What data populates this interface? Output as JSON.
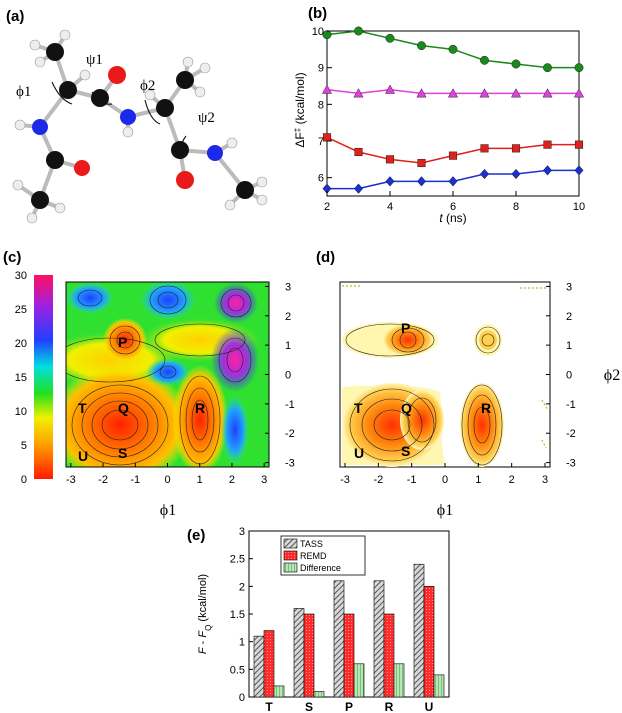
{
  "panel_labels": {
    "a": "(a)",
    "b": "(b)",
    "c": "(c)",
    "d": "(d)",
    "e": "(e)"
  },
  "molecule": {
    "labels": [
      "ψ1",
      "ϕ1",
      "ϕ2",
      "ψ2"
    ]
  },
  "chart_data": [
    {
      "id": "b",
      "type": "line",
      "xlabel_italic": "t",
      "xlabel_unit": "(ns)",
      "ylabel": "ΔF‡ (kcal/mol)",
      "x": [
        2,
        3,
        4,
        5,
        6,
        7,
        8,
        9,
        10
      ],
      "xlim": [
        2,
        10
      ],
      "ylim": [
        5.5,
        10
      ],
      "xticks": [
        "2",
        "4",
        "6",
        "8",
        "10"
      ],
      "yticks": [
        "6",
        "7",
        "8",
        "9",
        "10"
      ],
      "series": [
        {
          "color": "#1a8a1a",
          "marker": "circle",
          "values": [
            9.9,
            10.0,
            9.8,
            9.6,
            9.5,
            9.2,
            9.1,
            9.0,
            9.0
          ]
        },
        {
          "color": "#e040e0",
          "marker": "triangle",
          "values": [
            8.4,
            8.3,
            8.4,
            8.3,
            8.3,
            8.3,
            8.3,
            8.3,
            8.3
          ]
        },
        {
          "color": "#e0201a",
          "marker": "square",
          "values": [
            7.1,
            6.7,
            6.5,
            6.4,
            6.6,
            6.8,
            6.8,
            6.9,
            6.9
          ]
        },
        {
          "color": "#1a30d0",
          "marker": "diamond",
          "values": [
            5.7,
            5.7,
            5.9,
            5.9,
            5.9,
            6.1,
            6.1,
            6.2,
            6.2
          ]
        }
      ]
    },
    {
      "id": "c",
      "type": "heatmap",
      "xlabel": "ϕ1",
      "colorbar_ticks": [
        "30",
        "25",
        "20",
        "15",
        "10",
        "5",
        "0"
      ],
      "colorbar_range": [
        0,
        30
      ],
      "xticks": [
        "-3",
        "-2",
        "-1",
        "0",
        "1",
        "2",
        "3"
      ],
      "yticks": [
        "3",
        "2",
        "1",
        "0",
        "-1",
        "-2",
        "-3"
      ],
      "region_labels": [
        "P",
        "T",
        "Q",
        "R",
        "U",
        "S"
      ]
    },
    {
      "id": "d",
      "type": "heatmap",
      "xlabel": "ϕ1",
      "ylabel": "ϕ2",
      "xticks": [
        "-3",
        "-2",
        "-1",
        "0",
        "1",
        "2",
        "3"
      ],
      "yticks": [
        "3",
        "2",
        "1",
        "0",
        "-1",
        "-2",
        "-3"
      ],
      "region_labels": [
        "P",
        "T",
        "Q",
        "R",
        "U",
        "S"
      ]
    },
    {
      "id": "e",
      "type": "bar",
      "ylabel": "F - F_Q (kcal/mol)",
      "categories": [
        "T",
        "S",
        "P",
        "R",
        "U"
      ],
      "ylim": [
        0,
        3
      ],
      "yticks": [
        "0",
        "0.5",
        "1",
        "1.5",
        "2",
        "2.5",
        "3"
      ],
      "series": [
        {
          "name": "TASS",
          "color": "#555555",
          "values": [
            1.1,
            1.6,
            2.1,
            2.1,
            2.4
          ]
        },
        {
          "name": "REMD",
          "color": "#ff2a2a",
          "values": [
            1.2,
            1.5,
            1.5,
            1.5,
            2.0
          ]
        },
        {
          "name": "Difference",
          "color": "#8fd08f",
          "values": [
            0.2,
            0.1,
            0.6,
            0.6,
            0.4
          ]
        }
      ]
    }
  ]
}
